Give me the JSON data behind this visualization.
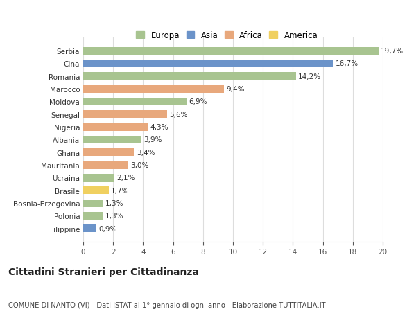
{
  "categories": [
    "Filippine",
    "Polonia",
    "Bosnia-Erzegovina",
    "Brasile",
    "Ucraina",
    "Mauritania",
    "Ghana",
    "Albania",
    "Nigeria",
    "Senegal",
    "Moldova",
    "Marocco",
    "Romania",
    "Cina",
    "Serbia"
  ],
  "values": [
    0.9,
    1.3,
    1.3,
    1.7,
    2.1,
    3.0,
    3.4,
    3.9,
    4.3,
    5.6,
    6.9,
    9.4,
    14.2,
    16.7,
    19.7
  ],
  "labels": [
    "0,9%",
    "1,3%",
    "1,3%",
    "1,7%",
    "2,1%",
    "3,0%",
    "3,4%",
    "3,9%",
    "4,3%",
    "5,6%",
    "6,9%",
    "9,4%",
    "14,2%",
    "16,7%",
    "19,7%"
  ],
  "continents": [
    "Asia",
    "Europa",
    "Europa",
    "America",
    "Europa",
    "Africa",
    "Africa",
    "Europa",
    "Africa",
    "Africa",
    "Europa",
    "Africa",
    "Europa",
    "Asia",
    "Europa"
  ],
  "continent_colors": {
    "Europa": "#a8c490",
    "Asia": "#6b93c9",
    "Africa": "#e8a87c",
    "America": "#f0d060"
  },
  "legend_order": [
    "Europa",
    "Asia",
    "Africa",
    "America"
  ],
  "title": "Cittadini Stranieri per Cittadinanza",
  "subtitle": "COMUNE DI NANTO (VI) - Dati ISTAT al 1° gennaio di ogni anno - Elaborazione TUTTITALIA.IT",
  "xlim": [
    0,
    20
  ],
  "xticks": [
    0,
    2,
    4,
    6,
    8,
    10,
    12,
    14,
    16,
    18,
    20
  ],
  "background_color": "#ffffff",
  "grid_color": "#dddddd",
  "bar_height": 0.6,
  "label_fontsize": 7.5,
  "tick_fontsize": 7.5,
  "title_fontsize": 10,
  "subtitle_fontsize": 7.2
}
